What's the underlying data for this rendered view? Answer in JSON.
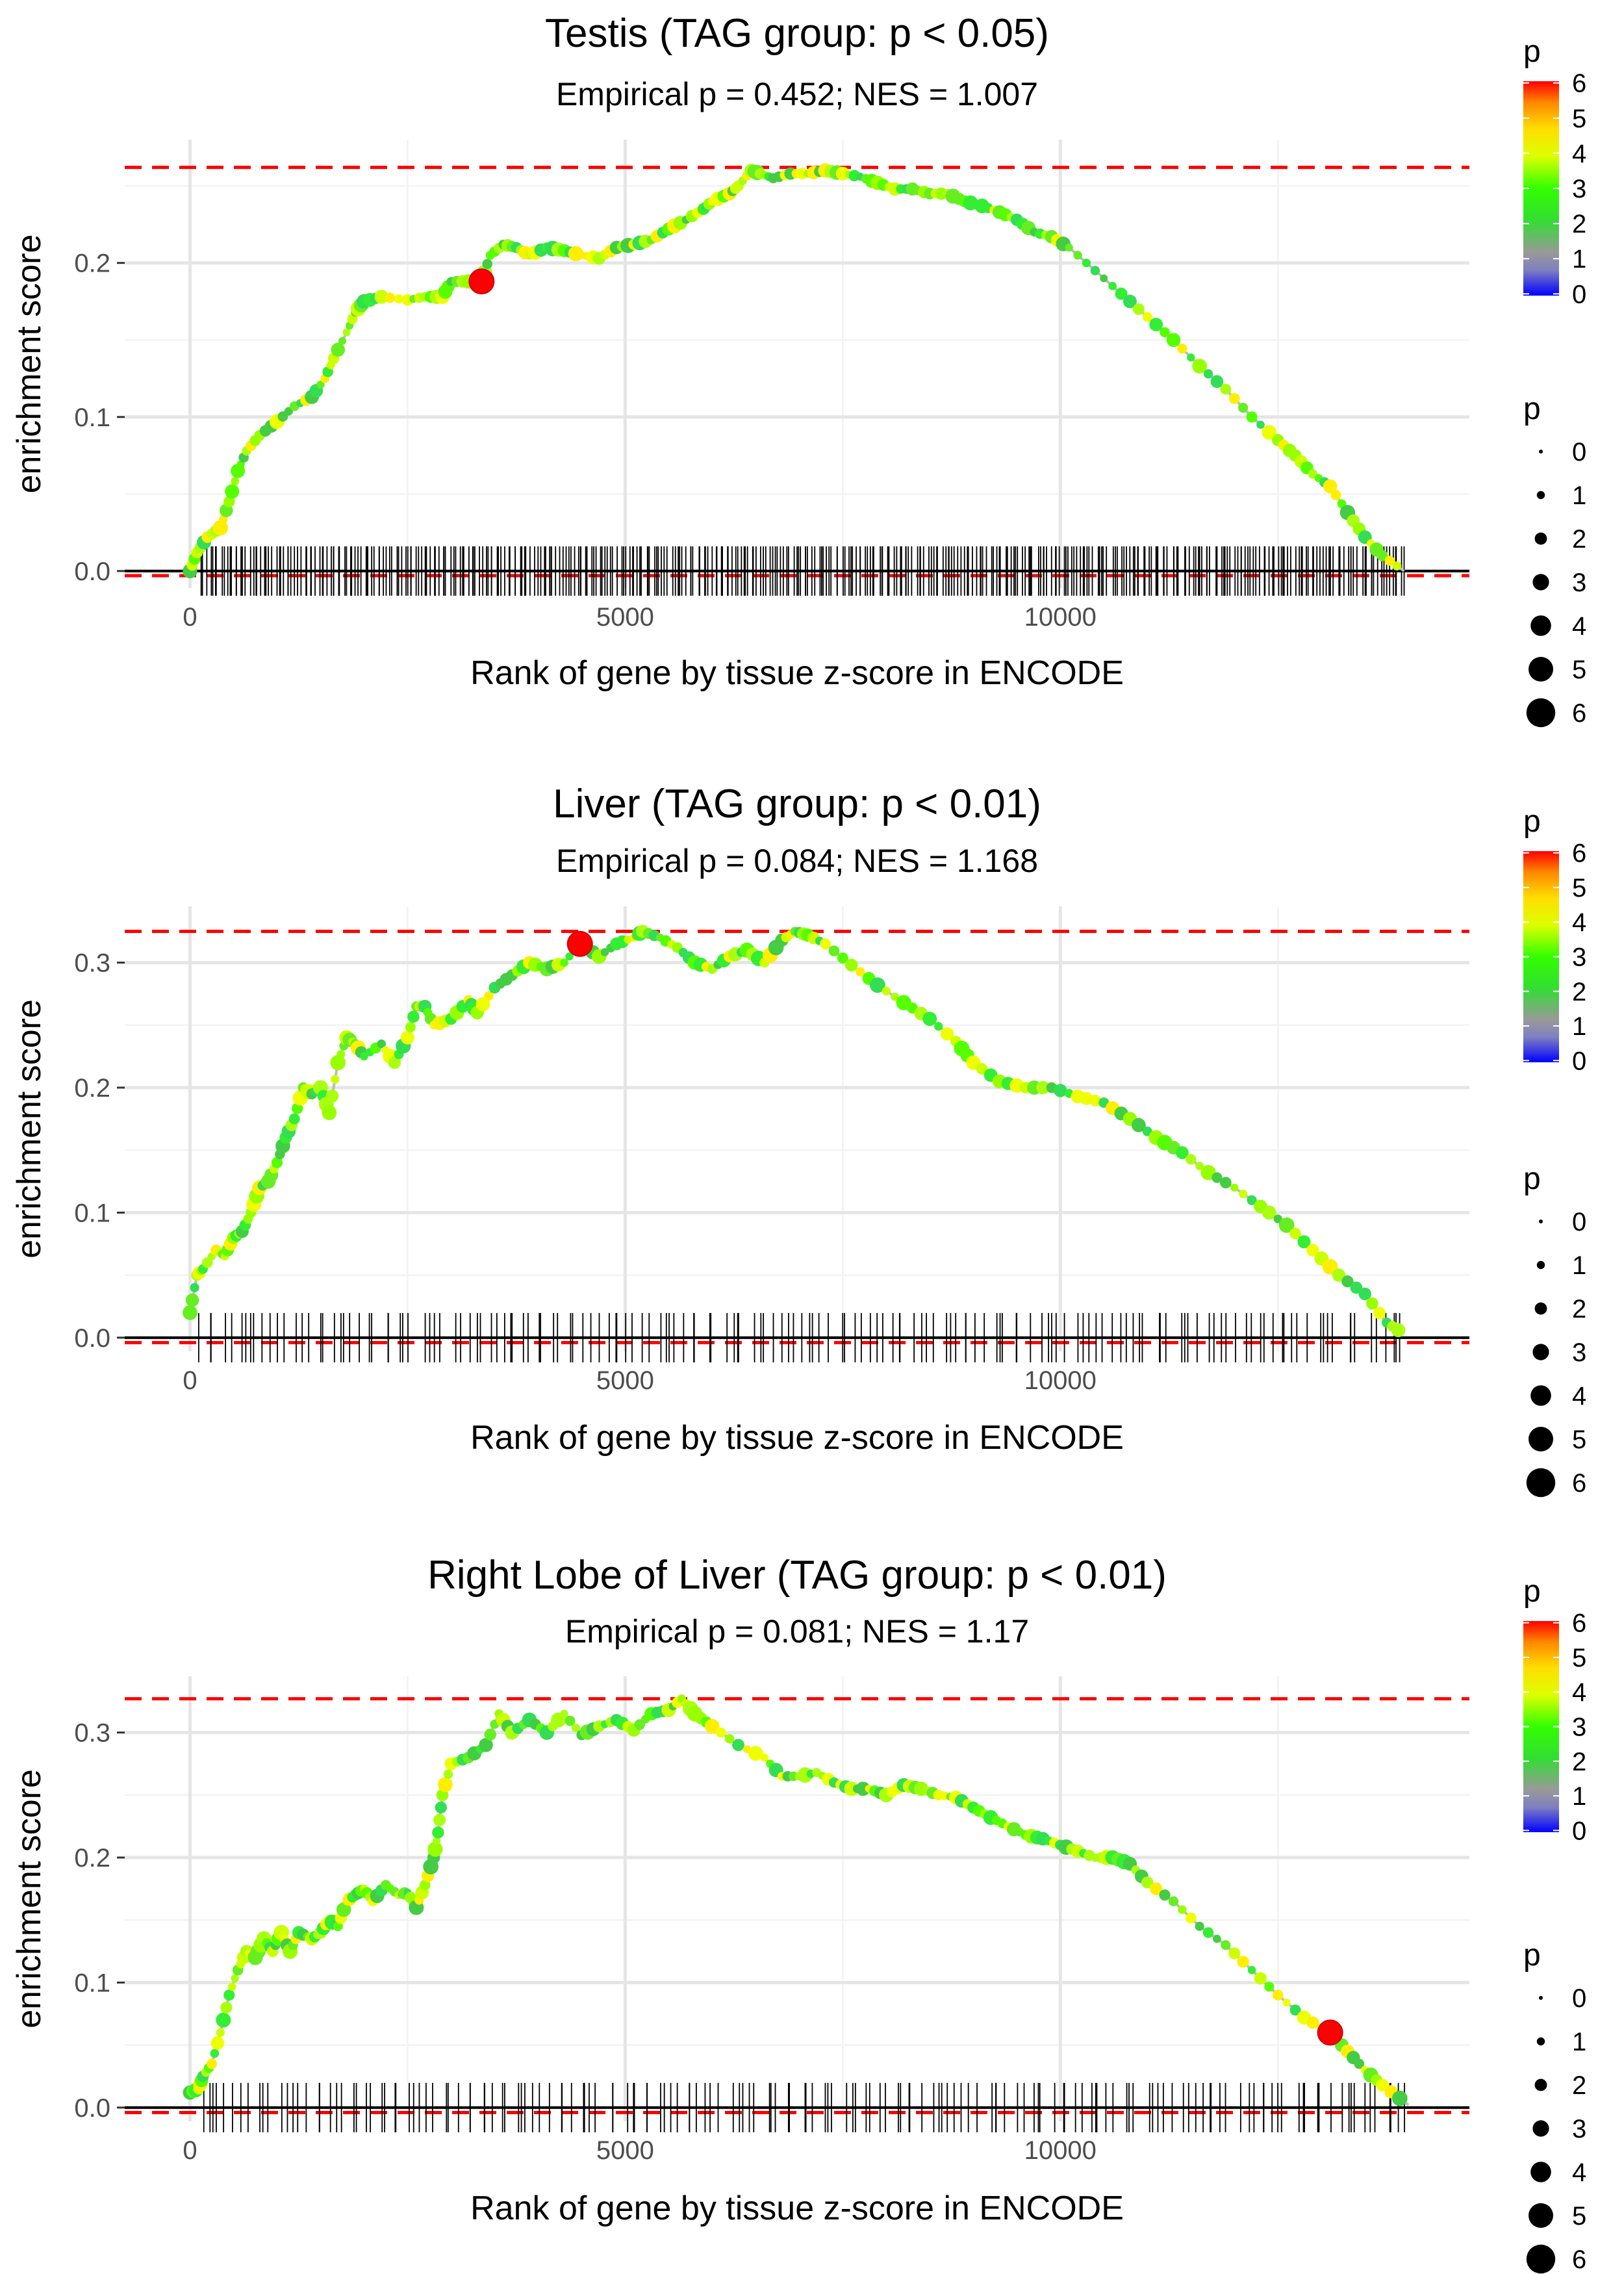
{
  "chart_data": [
    {
      "type": "line",
      "title": "Testis (TAG group: p < 0.05)",
      "subtitle": "Empirical p = 0.452; NES = 1.007",
      "xlabel": "Rank of gene by tissue z-score in ENCODE",
      "ylabel": "enrichment score",
      "xlim": [
        -750,
        14700
      ],
      "ylim": [
        -0.011,
        0.28
      ],
      "xticks": [
        0,
        5000,
        10000
      ],
      "xtick_labels": [
        "0",
        "5000",
        "10000"
      ],
      "yticks": [
        0,
        0.1,
        0.2
      ],
      "ytick_labels": [
        "0.0",
        "0.1",
        "0.2"
      ],
      "max_es": 0.262,
      "min_es": -0.003,
      "x_max_rank": 13950,
      "hit_count": 420,
      "highlight": {
        "x": 3350,
        "y": 0.188
      },
      "curve": [
        [
          0,
          0
        ],
        [
          80,
          0.012
        ],
        [
          200,
          0.022
        ],
        [
          350,
          0.028
        ],
        [
          450,
          0.045
        ],
        [
          550,
          0.065
        ],
        [
          650,
          0.078
        ],
        [
          800,
          0.088
        ],
        [
          1000,
          0.097
        ],
        [
          1200,
          0.107
        ],
        [
          1400,
          0.113
        ],
        [
          1550,
          0.125
        ],
        [
          1650,
          0.138
        ],
        [
          1800,
          0.155
        ],
        [
          1900,
          0.168
        ],
        [
          2000,
          0.175
        ],
        [
          2200,
          0.178
        ],
        [
          2500,
          0.176
        ],
        [
          2700,
          0.178
        ],
        [
          2900,
          0.178
        ],
        [
          3000,
          0.188
        ],
        [
          3200,
          0.188
        ],
        [
          3350,
          0.188
        ],
        [
          3450,
          0.205
        ],
        [
          3600,
          0.212
        ],
        [
          3750,
          0.21
        ],
        [
          3900,
          0.205
        ],
        [
          4100,
          0.21
        ],
        [
          4300,
          0.208
        ],
        [
          4500,
          0.205
        ],
        [
          4700,
          0.203
        ],
        [
          4900,
          0.21
        ],
        [
          5100,
          0.212
        ],
        [
          5300,
          0.215
        ],
        [
          5500,
          0.222
        ],
        [
          5700,
          0.228
        ],
        [
          5900,
          0.235
        ],
        [
          6000,
          0.24
        ],
        [
          6200,
          0.245
        ],
        [
          6300,
          0.25
        ],
        [
          6450,
          0.26
        ],
        [
          6550,
          0.258
        ],
        [
          6700,
          0.255
        ],
        [
          6900,
          0.258
        ],
        [
          7100,
          0.258
        ],
        [
          7300,
          0.26
        ],
        [
          7500,
          0.258
        ],
        [
          7700,
          0.256
        ],
        [
          7900,
          0.252
        ],
        [
          8100,
          0.248
        ],
        [
          8300,
          0.248
        ],
        [
          8500,
          0.245
        ],
        [
          8700,
          0.245
        ],
        [
          8900,
          0.24
        ],
        [
          9100,
          0.237
        ],
        [
          9300,
          0.233
        ],
        [
          9500,
          0.228
        ],
        [
          9700,
          0.22
        ],
        [
          9900,
          0.217
        ],
        [
          10100,
          0.21
        ],
        [
          10400,
          0.195
        ],
        [
          10700,
          0.18
        ],
        [
          11000,
          0.165
        ],
        [
          11300,
          0.15
        ],
        [
          11600,
          0.133
        ],
        [
          11900,
          0.118
        ],
        [
          12200,
          0.1
        ],
        [
          12500,
          0.085
        ],
        [
          12700,
          0.075
        ],
        [
          12900,
          0.063
        ],
        [
          13100,
          0.055
        ],
        [
          13300,
          0.038
        ],
        [
          13500,
          0.022
        ],
        [
          13700,
          0.01
        ],
        [
          13950,
          0
        ]
      ],
      "colorbar": {
        "title": "p",
        "ticks": [
          "0",
          "1",
          "2",
          "3",
          "4",
          "5",
          "6"
        ]
      },
      "size_legend": {
        "title": "p",
        "labels": [
          "0",
          "1",
          "2",
          "3",
          "4",
          "5",
          "6"
        ]
      }
    },
    {
      "type": "line",
      "title": "Liver (TAG group: p < 0.01)",
      "subtitle": "Empirical p = 0.084; NES = 1.168",
      "xlabel": "Rank of gene by tissue z-score in ENCODE",
      "ylabel": "enrichment score",
      "xlim": [
        -750,
        14700
      ],
      "ylim": [
        -0.011,
        0.345
      ],
      "xticks": [
        0,
        5000,
        10000
      ],
      "xtick_labels": [
        "0",
        "5000",
        "10000"
      ],
      "yticks": [
        0,
        0.1,
        0.2,
        0.3
      ],
      "ytick_labels": [
        "0.0",
        "0.1",
        "0.2",
        "0.3"
      ],
      "max_es": 0.325,
      "min_es": -0.004,
      "x_max_rank": 13950,
      "hit_count": 165,
      "highlight": {
        "x": 4480,
        "y": 0.315
      },
      "curve": [
        [
          0,
          0.02
        ],
        [
          80,
          0.05
        ],
        [
          150,
          0.055
        ],
        [
          300,
          0.07
        ],
        [
          400,
          0.065
        ],
        [
          500,
          0.08
        ],
        [
          600,
          0.085
        ],
        [
          700,
          0.1
        ],
        [
          800,
          0.12
        ],
        [
          900,
          0.125
        ],
        [
          1000,
          0.14
        ],
        [
          1100,
          0.16
        ],
        [
          1200,
          0.175
        ],
        [
          1300,
          0.2
        ],
        [
          1400,
          0.195
        ],
        [
          1500,
          0.2
        ],
        [
          1600,
          0.18
        ],
        [
          1700,
          0.22
        ],
        [
          1800,
          0.24
        ],
        [
          1900,
          0.235
        ],
        [
          2000,
          0.225
        ],
        [
          2200,
          0.235
        ],
        [
          2350,
          0.22
        ],
        [
          2500,
          0.24
        ],
        [
          2600,
          0.265
        ],
        [
          2700,
          0.265
        ],
        [
          2800,
          0.25
        ],
        [
          3000,
          0.255
        ],
        [
          3200,
          0.27
        ],
        [
          3300,
          0.26
        ],
        [
          3500,
          0.28
        ],
        [
          3700,
          0.29
        ],
        [
          3900,
          0.3
        ],
        [
          4100,
          0.295
        ],
        [
          4300,
          0.3
        ],
        [
          4480,
          0.315
        ],
        [
          4700,
          0.305
        ],
        [
          4900,
          0.315
        ],
        [
          5100,
          0.32
        ],
        [
          5200,
          0.325
        ],
        [
          5400,
          0.32
        ],
        [
          5600,
          0.312
        ],
        [
          5800,
          0.3
        ],
        [
          6000,
          0.295
        ],
        [
          6200,
          0.305
        ],
        [
          6400,
          0.31
        ],
        [
          6600,
          0.3
        ],
        [
          6800,
          0.318
        ],
        [
          6950,
          0.325
        ],
        [
          7100,
          0.322
        ],
        [
          7300,
          0.315
        ],
        [
          7600,
          0.298
        ],
        [
          7900,
          0.282
        ],
        [
          8200,
          0.268
        ],
        [
          8500,
          0.255
        ],
        [
          8800,
          0.237
        ],
        [
          9000,
          0.22
        ],
        [
          9300,
          0.205
        ],
        [
          9600,
          0.2
        ],
        [
          9900,
          0.2
        ],
        [
          10200,
          0.193
        ],
        [
          10500,
          0.188
        ],
        [
          10800,
          0.175
        ],
        [
          11100,
          0.16
        ],
        [
          11400,
          0.148
        ],
        [
          11700,
          0.132
        ],
        [
          12000,
          0.12
        ],
        [
          12300,
          0.105
        ],
        [
          12600,
          0.09
        ],
        [
          12900,
          0.07
        ],
        [
          13200,
          0.05
        ],
        [
          13500,
          0.035
        ],
        [
          13750,
          0.012
        ],
        [
          13950,
          0.003
        ]
      ],
      "colorbar": {
        "title": "p",
        "ticks": [
          "0",
          "1",
          "2",
          "3",
          "4",
          "5",
          "6"
        ]
      },
      "size_legend": {
        "title": "p",
        "labels": [
          "0",
          "1",
          "2",
          "3",
          "4",
          "5",
          "6"
        ]
      }
    },
    {
      "type": "line",
      "title": "Right Lobe of Liver (TAG group: p < 0.01)",
      "subtitle": "Empirical p = 0.081; NES = 1.17",
      "xlabel": "Rank of gene by tissue z-score in ENCODE",
      "ylabel": "enrichment score",
      "xlim": [
        -750,
        14700
      ],
      "ylim": [
        -0.011,
        0.345
      ],
      "xticks": [
        0,
        5000,
        10000
      ],
      "xtick_labels": [
        "0",
        "5000",
        "10000"
      ],
      "yticks": [
        0,
        0.1,
        0.2,
        0.3
      ],
      "ytick_labels": [
        "0.0",
        "0.1",
        "0.2",
        "0.3"
      ],
      "max_es": 0.327,
      "min_es": -0.004,
      "x_max_rank": 14000,
      "hit_count": 170,
      "highlight": {
        "x": 13100,
        "y": 0.06
      },
      "curve": [
        [
          0,
          0.012
        ],
        [
          100,
          0.015
        ],
        [
          150,
          0.025
        ],
        [
          250,
          0.035
        ],
        [
          350,
          0.06
        ],
        [
          450,
          0.09
        ],
        [
          550,
          0.11
        ],
        [
          650,
          0.125
        ],
        [
          750,
          0.12
        ],
        [
          850,
          0.135
        ],
        [
          950,
          0.125
        ],
        [
          1050,
          0.14
        ],
        [
          1150,
          0.125
        ],
        [
          1250,
          0.14
        ],
        [
          1400,
          0.135
        ],
        [
          1500,
          0.14
        ],
        [
          1600,
          0.15
        ],
        [
          1700,
          0.145
        ],
        [
          1800,
          0.165
        ],
        [
          1900,
          0.17
        ],
        [
          2000,
          0.175
        ],
        [
          2100,
          0.165
        ],
        [
          2250,
          0.178
        ],
        [
          2400,
          0.17
        ],
        [
          2500,
          0.172
        ],
        [
          2600,
          0.16
        ],
        [
          2700,
          0.178
        ],
        [
          2800,
          0.2
        ],
        [
          2850,
          0.22
        ],
        [
          2900,
          0.25
        ],
        [
          3000,
          0.275
        ],
        [
          3200,
          0.28
        ],
        [
          3400,
          0.29
        ],
        [
          3550,
          0.315
        ],
        [
          3700,
          0.3
        ],
        [
          3900,
          0.31
        ],
        [
          4100,
          0.3
        ],
        [
          4300,
          0.315
        ],
        [
          4500,
          0.298
        ],
        [
          4700,
          0.305
        ],
        [
          4900,
          0.31
        ],
        [
          5100,
          0.302
        ],
        [
          5300,
          0.315
        ],
        [
          5500,
          0.318
        ],
        [
          5650,
          0.327
        ],
        [
          5800,
          0.315
        ],
        [
          6000,
          0.305
        ],
        [
          6300,
          0.29
        ],
        [
          6600,
          0.28
        ],
        [
          6800,
          0.265
        ],
        [
          7000,
          0.265
        ],
        [
          7200,
          0.268
        ],
        [
          7400,
          0.26
        ],
        [
          7600,
          0.255
        ],
        [
          7800,
          0.255
        ],
        [
          8000,
          0.25
        ],
        [
          8200,
          0.258
        ],
        [
          8400,
          0.255
        ],
        [
          8600,
          0.25
        ],
        [
          8800,
          0.248
        ],
        [
          9000,
          0.24
        ],
        [
          9200,
          0.232
        ],
        [
          9400,
          0.225
        ],
        [
          9600,
          0.218
        ],
        [
          9800,
          0.215
        ],
        [
          10000,
          0.21
        ],
        [
          10200,
          0.205
        ],
        [
          10400,
          0.2
        ],
        [
          10600,
          0.2
        ],
        [
          10800,
          0.195
        ],
        [
          11000,
          0.18
        ],
        [
          11300,
          0.165
        ],
        [
          11600,
          0.145
        ],
        [
          11900,
          0.13
        ],
        [
          12200,
          0.11
        ],
        [
          12500,
          0.09
        ],
        [
          12800,
          0.072
        ],
        [
          13100,
          0.06
        ],
        [
          13300,
          0.045
        ],
        [
          13500,
          0.03
        ],
        [
          13700,
          0.018
        ],
        [
          14000,
          0.002
        ]
      ],
      "colorbar": {
        "title": "p",
        "ticks": [
          "0",
          "1",
          "2",
          "3",
          "4",
          "5",
          "6"
        ]
      },
      "size_legend": {
        "title": "p",
        "labels": [
          "0",
          "1",
          "2",
          "3",
          "4",
          "5",
          "6"
        ]
      }
    }
  ]
}
